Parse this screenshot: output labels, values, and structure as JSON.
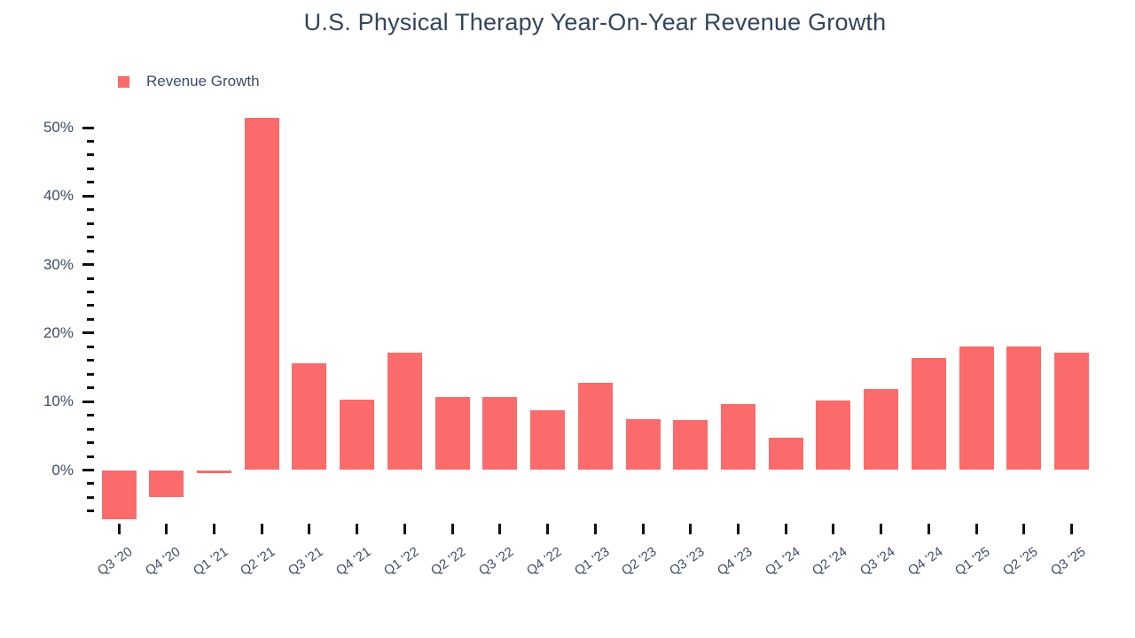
{
  "chart": {
    "title": "U.S. Physical Therapy Year-On-Year Revenue Growth",
    "legend": {
      "label": "Revenue Growth"
    }
  },
  "chart_data": {
    "type": "bar",
    "title": "U.S. Physical Therapy Year-On-Year Revenue Growth",
    "xlabel": "",
    "ylabel": "",
    "categories": [
      "Q3 '20",
      "Q4 '20",
      "Q1 '21",
      "Q2 '21",
      "Q3 '21",
      "Q4 '21",
      "Q1 '22",
      "Q2 '22",
      "Q3 '22",
      "Q4 '22",
      "Q1 '23",
      "Q2 '23",
      "Q3 '23",
      "Q4 '23",
      "Q1 '24",
      "Q2 '24",
      "Q3 '24",
      "Q4 '24",
      "Q1 '25",
      "Q2 '25",
      "Q3 '25"
    ],
    "series": [
      {
        "name": "Revenue Growth",
        "values": [
          -7.2,
          -4.0,
          -0.5,
          51.4,
          15.6,
          10.3,
          17.1,
          10.7,
          10.7,
          8.7,
          12.7,
          7.5,
          7.3,
          9.6,
          4.7,
          10.2,
          11.9,
          16.4,
          18.0,
          18.0,
          17.2
        ]
      }
    ],
    "ylim": [
      -8,
      52
    ],
    "yticks_major": [
      0,
      10,
      20,
      30,
      40,
      50
    ],
    "ytick_suffix": "%",
    "minor_tick_step": 2,
    "minor_tick_min": -6,
    "minor_tick_max": 50,
    "grid": false,
    "legend_position": "top-left",
    "colors": {
      "bar": "#FB6B6B",
      "title_text": "#33455C",
      "axis_text": "#3D4D66",
      "tick_mark": "#111111"
    }
  }
}
